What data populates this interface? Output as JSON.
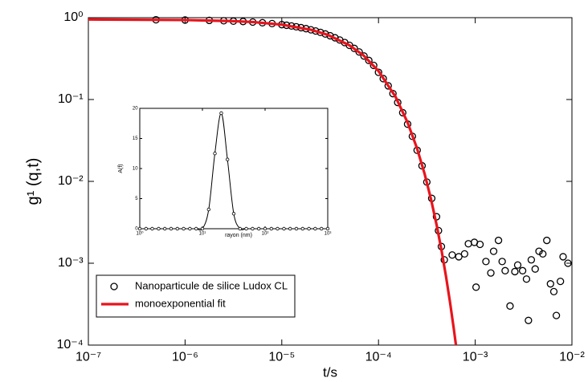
{
  "chart_data": [
    {
      "type": "scatter",
      "xscale": "log",
      "yscale": "log",
      "xlabel": "t/s",
      "ylabel": "g¹ (q,t)",
      "xlim": [
        1e-07,
        0.01
      ],
      "ylim": [
        0.0001,
        1
      ],
      "xticks": [
        {
          "value": 1e-07,
          "label": "10⁻⁷"
        },
        {
          "value": 1e-06,
          "label": "10⁻⁶"
        },
        {
          "value": 1e-05,
          "label": "10⁻⁵"
        },
        {
          "value": 0.0001,
          "label": "10⁻⁴"
        },
        {
          "value": 0.001,
          "label": "10⁻³"
        },
        {
          "value": 0.01,
          "label": "10⁻²"
        }
      ],
      "yticks": [
        {
          "value": 0.0001,
          "label": "10⁻⁴"
        },
        {
          "value": 0.001,
          "label": "10⁻³"
        },
        {
          "value": 0.01,
          "label": "10⁻²"
        },
        {
          "value": 0.1,
          "label": "10⁻¹"
        },
        {
          "value": 1,
          "label": "10⁰"
        }
      ],
      "legend": "lower left",
      "series": [
        {
          "name": "Nanoparticule de silice Ludox CL",
          "style": "markers",
          "color": "#000000",
          "x": [
            5e-07,
            1e-06,
            1.78e-06,
            2.51e-06,
            3.16e-06,
            3.98e-06,
            5.01e-06,
            6.31e-06,
            7.94e-06,
            1e-05,
            1.12e-05,
            1.26e-05,
            1.41e-05,
            1.58e-05,
            1.78e-05,
            2e-05,
            2.24e-05,
            2.51e-05,
            2.82e-05,
            3.16e-05,
            3.55e-05,
            3.98e-05,
            4.47e-05,
            5.01e-05,
            5.62e-05,
            6.31e-05,
            7.08e-05,
            7.94e-05,
            8.91e-05,
            0.0001,
            0.000112,
            0.000126,
            0.000141,
            0.000158,
            0.000178,
            0.0002,
            0.000224,
            0.000251,
            0.000282,
            0.000316,
            0.000355,
            0.000398,
            0.000417,
            0.000447,
            0.000479,
            0.000578,
            0.000676,
            0.000776,
            0.00085,
            0.00098,
            0.00102,
            0.00112,
            0.00129,
            0.00145,
            0.00155,
            0.00174,
            0.0019,
            0.00204,
            0.00229,
            0.00257,
            0.00275,
            0.00309,
            0.00339,
            0.00355,
            0.0038,
            0.00417,
            0.00457,
            0.005,
            0.0055,
            0.006,
            0.0065,
            0.0069,
            0.0076,
            0.0081,
            0.0091
          ],
          "values": [
            0.943,
            0.936,
            0.926,
            0.916,
            0.907,
            0.897,
            0.883,
            0.867,
            0.847,
            0.822,
            0.808,
            0.791,
            0.774,
            0.755,
            0.734,
            0.711,
            0.687,
            0.661,
            0.632,
            0.601,
            0.568,
            0.533,
            0.497,
            0.459,
            0.421,
            0.381,
            0.34,
            0.3,
            0.261,
            0.215,
            0.18,
            0.147,
            0.118,
            0.092,
            0.069,
            0.05,
            0.0355,
            0.024,
            0.0155,
            0.0098,
            0.0062,
            0.0037,
            0.0025,
            0.0016,
            0.0011,
            0.00126,
            0.0012,
            0.0013,
            0.00173,
            0.0018,
            0.00051,
            0.0017,
            0.00105,
            0.00076,
            0.0014,
            0.0019,
            0.00105,
            0.00081,
            0.0003,
            0.00079,
            0.00095,
            0.00081,
            0.00064,
            0.0002,
            0.0011,
            0.00085,
            0.0014,
            0.0013,
            0.0019,
            0.00056,
            0.00045,
            0.00023,
            0.0006,
            0.0012,
            0.001
          ]
        },
        {
          "name": "monoexponential fit",
          "style": "line",
          "color": "#e8141c",
          "x": [
            1e-07,
            1e-06,
            3e-06,
            5e-06,
            1e-05,
            2e-05,
            3e-05,
            5e-05,
            7e-05,
            0.0001,
            0.00015,
            0.0002,
            0.00025,
            0.0003,
            0.00035,
            0.0004,
            0.00045,
            0.0005,
            0.00055,
            0.0006,
            0.000632
          ],
          "values": [
            0.95,
            0.936,
            0.909,
            0.884,
            0.822,
            0.711,
            0.615,
            0.46,
            0.345,
            0.223,
            0.108,
            0.0523,
            0.0254,
            0.0123,
            0.00596,
            0.00289,
            0.0014,
            0.000677,
            0.000328,
            0.000159,
            0.0001
          ]
        }
      ]
    },
    {
      "type": "line",
      "xscale": "log",
      "markers": true,
      "color": "#000000",
      "xlabel": "rayon (nm)",
      "ylabel": "A(f)",
      "xlim": [
        1,
        1000
      ],
      "ylim": [
        0,
        20
      ],
      "xticks": [
        {
          "value": 1,
          "label": "10⁰"
        },
        {
          "value": 10,
          "label": "10¹"
        },
        {
          "value": 100,
          "label": "10²"
        },
        {
          "value": 1000,
          "label": "10³"
        }
      ],
      "yticks": [
        0,
        5,
        10,
        15,
        20
      ],
      "x": [
        1,
        1.26,
        1.58,
        2,
        2.51,
        3.16,
        3.98,
        5.01,
        6.31,
        7.94,
        10,
        12.6,
        15.8,
        20,
        25.1,
        31.6,
        39.8,
        50.1,
        63.1,
        79.4,
        100,
        126,
        158,
        200,
        251,
        316,
        398,
        501,
        631,
        794,
        1000
      ],
      "values": [
        0,
        0,
        0,
        0,
        0,
        0,
        0,
        0,
        0,
        0,
        0,
        3.2,
        12.5,
        19.2,
        11.5,
        2.5,
        0,
        0,
        0,
        0,
        0,
        0,
        0,
        0,
        0,
        0,
        0,
        0,
        0,
        0,
        0
      ]
    }
  ]
}
